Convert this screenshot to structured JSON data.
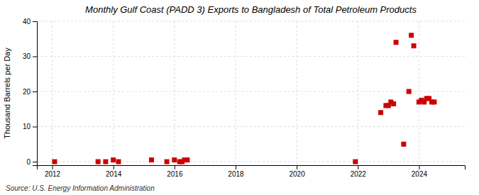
{
  "chart_data": {
    "type": "scatter",
    "title": "Monthly Gulf Coast (PADD 3) Exports to Bangladesh of Total Petroleum Products",
    "ylabel": "Thousand Barrels per Day",
    "annotation": "Source: U.S. Energy Information Administration",
    "color": "#cc0000",
    "marker": "square",
    "grid": true,
    "xlim": [
      2011.5,
      2025.5
    ],
    "ylim": [
      -1,
      40
    ],
    "xticks": [
      2012,
      2014,
      2016,
      2018,
      2020,
      2022,
      2024
    ],
    "yticks": [
      0,
      10,
      20,
      30,
      40
    ],
    "x": [
      2012.08,
      2013.5,
      2013.75,
      2014.0,
      2014.17,
      2015.25,
      2015.75,
      2016.0,
      2016.17,
      2016.25,
      2016.33,
      2016.42,
      2021.92,
      2022.75,
      2022.92,
      2023.0,
      2023.08,
      2023.17,
      2023.25,
      2023.5,
      2023.67,
      2023.75,
      2023.83,
      2024.0,
      2024.08,
      2024.17,
      2024.25,
      2024.33,
      2024.42,
      2024.5
    ],
    "values": [
      0.0,
      0.0,
      0.0,
      0.5,
      0.0,
      0.5,
      0.0,
      0.5,
      0.0,
      0.0,
      0.5,
      0.5,
      0.0,
      14.0,
      16.0,
      16.0,
      17.0,
      16.5,
      34.0,
      5.0,
      20.0,
      36.0,
      33.0,
      17.0,
      17.5,
      17.0,
      18.0,
      18.0,
      17.0,
      17.0
    ]
  }
}
